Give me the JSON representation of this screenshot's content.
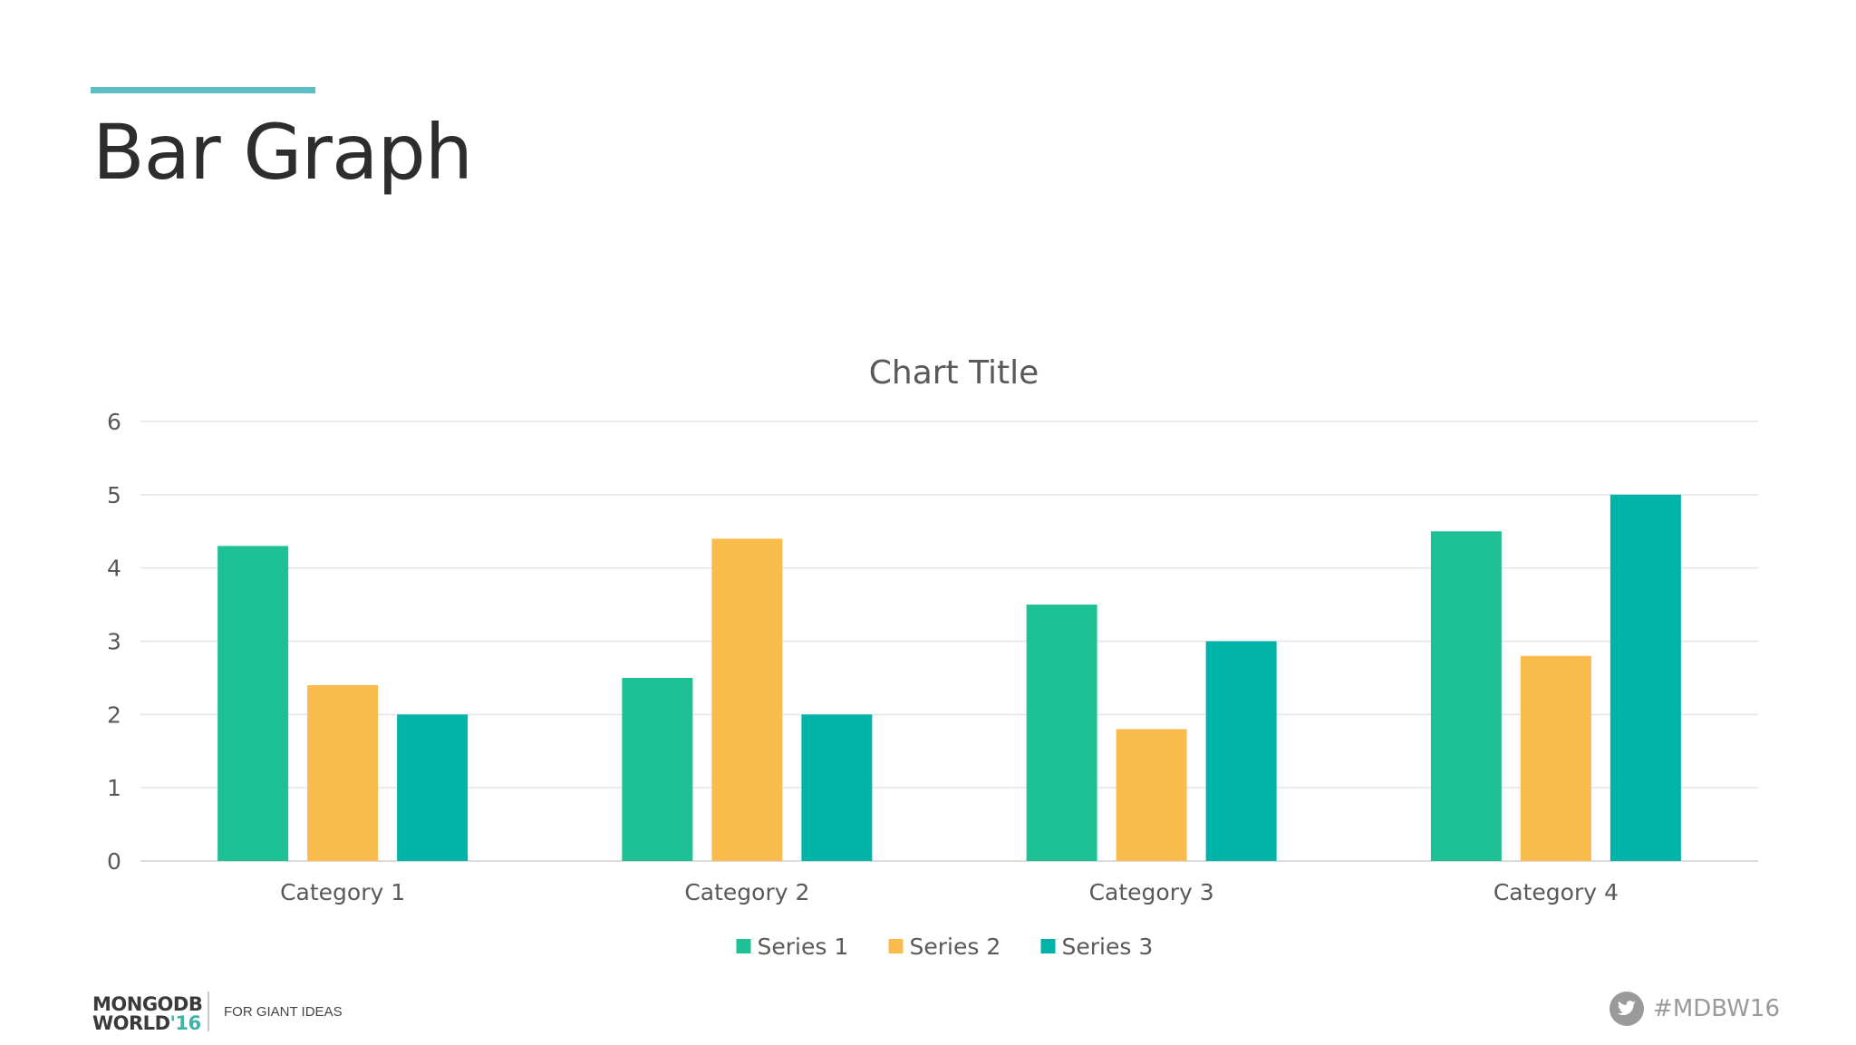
{
  "slide": {
    "title": "Bar Graph",
    "footer": {
      "logo_line1": "MONGODB",
      "logo_line2": "WORLD",
      "logo_year": "'16",
      "tagline": "FOR GIANT IDEAS",
      "hashtag": "#MDBW16",
      "social_icon": "twitter-icon"
    },
    "accent_color": "#5bbfc4"
  },
  "chart_data": {
    "type": "bar",
    "title": "Chart Title",
    "xlabel": "",
    "ylabel": "",
    "categories": [
      "Category 1",
      "Category 2",
      "Category 3",
      "Category 4"
    ],
    "series": [
      {
        "name": "Series 1",
        "values": [
          4.3,
          2.5,
          3.5,
          4.5
        ],
        "color": "#1dc195"
      },
      {
        "name": "Series 2",
        "values": [
          2.4,
          4.4,
          1.8,
          2.8
        ],
        "color": "#f9bb4c"
      },
      {
        "name": "Series 3",
        "values": [
          2,
          2,
          3,
          5
        ],
        "color": "#00b4aa"
      }
    ],
    "ylim": [
      0,
      6
    ],
    "yticks": [
      0,
      1,
      2,
      3,
      4,
      5,
      6
    ],
    "grid": true,
    "legend_position": "bottom"
  }
}
